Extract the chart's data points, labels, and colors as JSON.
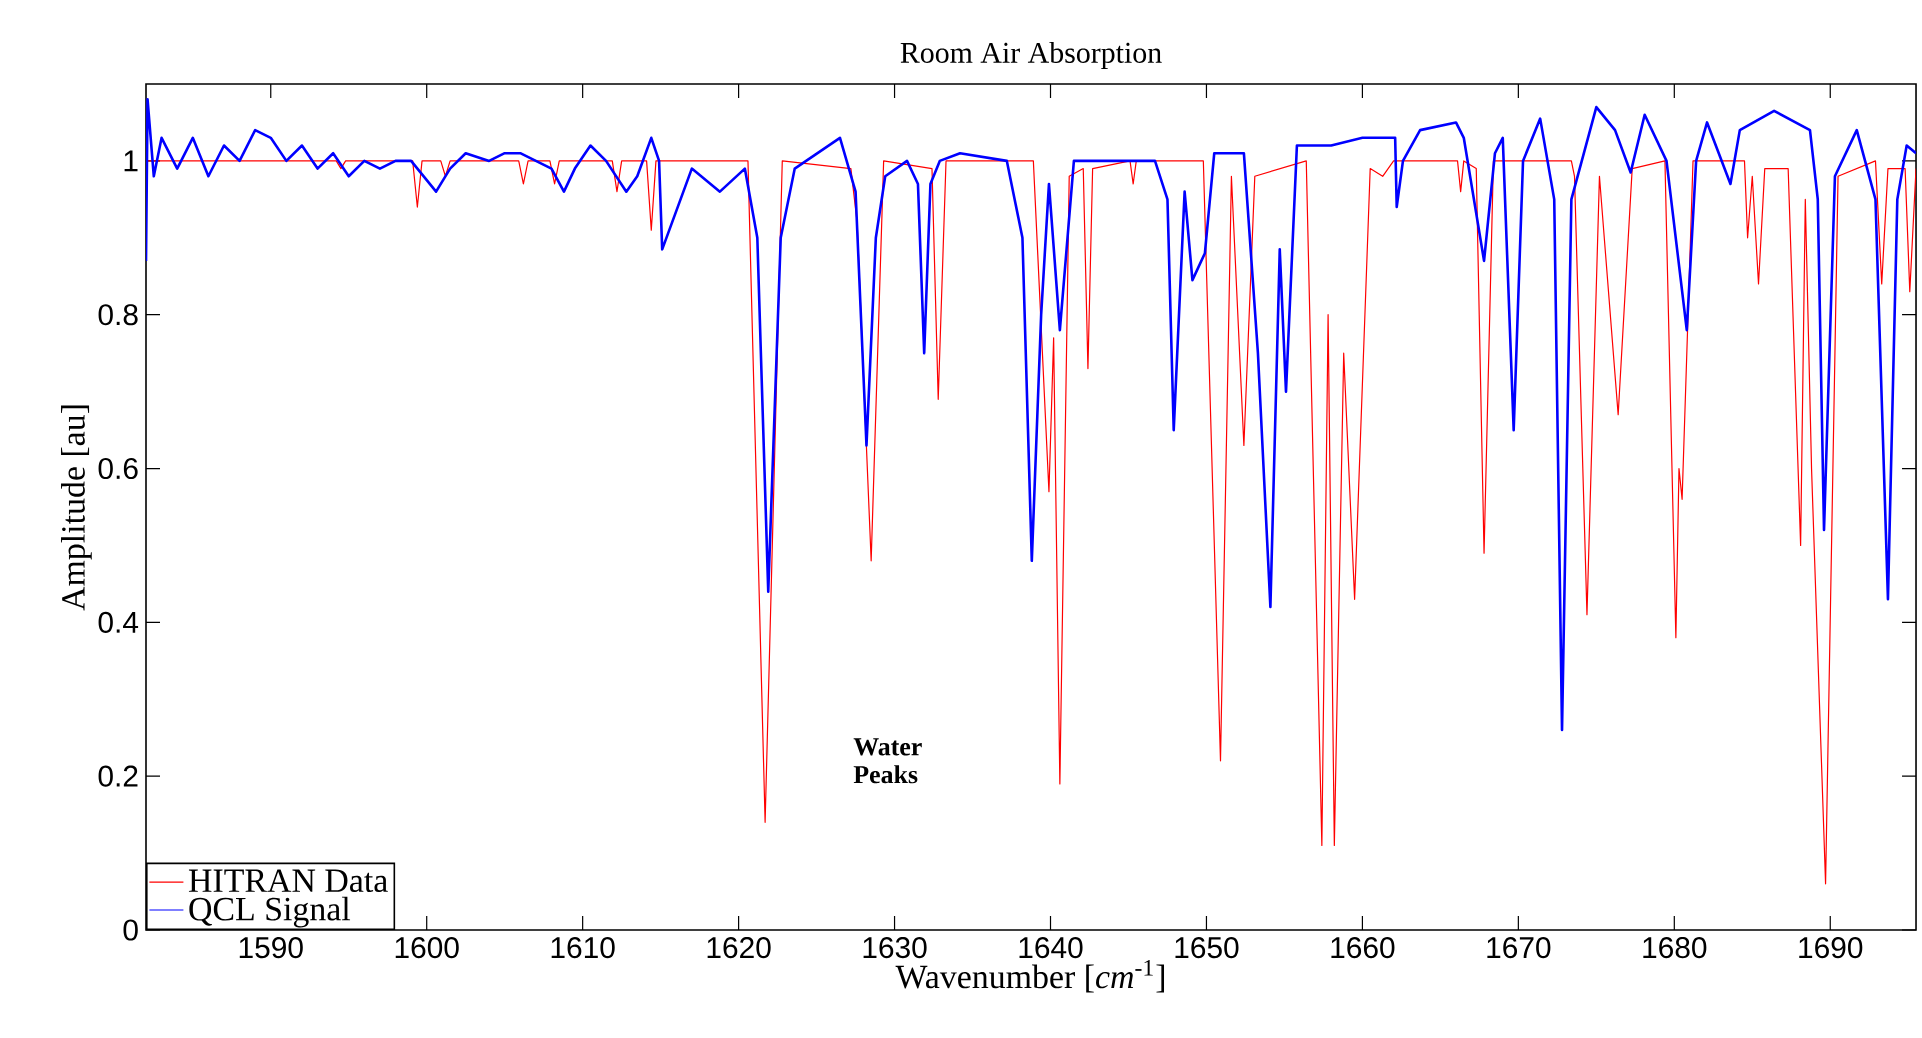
{
  "chart_data": {
    "type": "line",
    "title": "Room Air Absorption",
    "xlabel": "Wavenumber [*cm*$^{-1}$]",
    "ylabel": "Amplitude [au]",
    "xlim": [
      1582,
      1695.5
    ],
    "ylim": [
      0,
      1.1
    ],
    "xticks": [
      1590,
      1600,
      1610,
      1620,
      1630,
      1640,
      1650,
      1660,
      1670,
      1680,
      1690
    ],
    "yticks": [
      0,
      0.2,
      0.4,
      0.6,
      0.8,
      1
    ],
    "legend": "bottom left",
    "grid": false,
    "marker": "none",
    "line_style": "solid",
    "annotations": [
      "Water Peaks"
    ],
    "series": [
      {
        "name": "HITRAN Data",
        "color": "#ff0000",
        "x": [
          1582,
          1594.2,
          1594.5,
          1594.8,
          1599.1,
          1599.4,
          1599.7,
          1600.9,
          1601.2,
          1601.5,
          1605.9,
          1606.2,
          1606.5,
          1607.9,
          1608.2,
          1608.5,
          1611.9,
          1612.2,
          1612.5,
          1614.1,
          1614.4,
          1614.7,
          1620.6,
          1621.7,
          1622.8,
          1627.2,
          1627.6,
          1628.5,
          1629.3,
          1632.4,
          1632.8,
          1633.3,
          1638.9,
          1639.9,
          1640.2,
          1640.6,
          1641.2,
          1642.1,
          1642.4,
          1642.7,
          1645.1,
          1645.3,
          1645.5,
          1649.8,
          1650.9,
          1651.6,
          1652.4,
          1653.1,
          1656.4,
          1657.4,
          1657.8,
          1658.2,
          1658.8,
          1659.5,
          1660.5,
          1661.3,
          1662,
          1666.1,
          1666.3,
          1666.5,
          1667.3,
          1667.8,
          1668.4,
          1673.4,
          1673.6,
          1674.4,
          1675.2,
          1676.4,
          1677.3,
          1679.4,
          1680.1,
          1680.3,
          1680.5,
          1681.2,
          1684.5,
          1684.7,
          1685.0,
          1685.4,
          1685.8,
          1687.3,
          1688.1,
          1688.4,
          1688.8,
          1689.7,
          1690.5,
          1692.9,
          1693.3,
          1693.7,
          1694.8,
          1695.1,
          1695.5
        ],
        "values": [
          1.0,
          1.0,
          0.99,
          1.0,
          1.0,
          0.94,
          1.0,
          1.0,
          0.98,
          1.0,
          1.0,
          0.97,
          1.0,
          1.0,
          0.97,
          1.0,
          1.0,
          0.96,
          1.0,
          1.0,
          0.91,
          1.0,
          1.0,
          0.14,
          1.0,
          0.99,
          0.92,
          0.48,
          1.0,
          0.99,
          0.69,
          1.0,
          1.0,
          0.57,
          0.77,
          0.19,
          0.98,
          0.99,
          0.73,
          0.99,
          1.0,
          0.97,
          1.0,
          1.0,
          0.22,
          0.98,
          0.63,
          0.98,
          1.0,
          0.11,
          0.8,
          0.11,
          0.75,
          0.43,
          0.99,
          0.98,
          1.0,
          1.0,
          0.96,
          1.0,
          0.99,
          0.49,
          1.0,
          1.0,
          0.98,
          0.41,
          0.98,
          0.67,
          0.99,
          1.0,
          0.38,
          0.6,
          0.56,
          1.0,
          1.0,
          0.9,
          0.98,
          0.84,
          0.99,
          0.99,
          0.5,
          0.95,
          0.6,
          0.06,
          0.98,
          1.0,
          0.84,
          0.99,
          0.99,
          0.83,
          0.99
        ]
      },
      {
        "name": "QCL Signal",
        "color": "#0000ff",
        "x": [
          1582,
          1582.1,
          1582.5,
          1583,
          1584,
          1585,
          1586,
          1587,
          1588,
          1589,
          1590,
          1591,
          1592,
          1593,
          1594,
          1595,
          1596,
          1597,
          1598,
          1599,
          1600.6,
          1601.5,
          1602.5,
          1604,
          1605,
          1606,
          1607,
          1608,
          1608.8,
          1609.5,
          1610.5,
          1611.5,
          1612.8,
          1613.5,
          1614.4,
          1614.9,
          1615.1,
          1617,
          1618.8,
          1620.4,
          1621.2,
          1621.9,
          1622.7,
          1623.6,
          1626.5,
          1627.5,
          1628.2,
          1628.8,
          1629.4,
          1630.8,
          1631.5,
          1631.9,
          1632.3,
          1632.9,
          1634.2,
          1637.2,
          1638.2,
          1638.8,
          1639.4,
          1639.9,
          1640.6,
          1641.5,
          1646.7,
          1647.5,
          1647.9,
          1648.6,
          1649.1,
          1649.9,
          1650.5,
          1652.4,
          1653.3,
          1654.1,
          1654.7,
          1655.1,
          1655.8,
          1658,
          1660,
          1662.1,
          1662.2,
          1662.6,
          1663.7,
          1666,
          1666.5,
          1667.8,
          1668.5,
          1669,
          1669.7,
          1670.3,
          1671.4,
          1672.3,
          1672.8,
          1673.4,
          1675,
          1676.2,
          1677.2,
          1678.1,
          1679.5,
          1680.8,
          1681.4,
          1682.1,
          1683.6,
          1684.2,
          1686.4,
          1688.7,
          1689.2,
          1689.6,
          1690.3,
          1691.7,
          1692.9,
          1693.7,
          1694.3,
          1694.9,
          1695.5
        ],
        "values": [
          0.87,
          1.08,
          0.98,
          1.03,
          0.99,
          1.03,
          0.98,
          1.02,
          1.0,
          1.04,
          1.03,
          1.0,
          1.02,
          0.99,
          1.01,
          0.98,
          1.0,
          0.99,
          1.0,
          1.0,
          0.96,
          0.99,
          1.01,
          1.0,
          1.01,
          1.01,
          1.0,
          0.99,
          0.96,
          0.99,
          1.02,
          1.0,
          0.96,
          0.98,
          1.03,
          1.0,
          0.885,
          0.99,
          0.96,
          0.99,
          0.9,
          0.44,
          0.9,
          0.99,
          1.03,
          0.96,
          0.63,
          0.9,
          0.98,
          1.0,
          0.97,
          0.75,
          0.97,
          1.0,
          1.01,
          1.0,
          0.9,
          0.48,
          0.8,
          0.97,
          0.78,
          1.0,
          1.0,
          0.95,
          0.65,
          0.96,
          0.845,
          0.88,
          1.01,
          1.01,
          0.75,
          0.42,
          0.885,
          0.7,
          1.02,
          1.02,
          1.03,
          1.03,
          0.94,
          1.0,
          1.04,
          1.05,
          1.03,
          0.87,
          1.01,
          1.03,
          0.65,
          1.0,
          1.055,
          0.95,
          0.26,
          0.95,
          1.07,
          1.04,
          0.985,
          1.06,
          1.0,
          0.78,
          1.0,
          1.05,
          0.97,
          1.04,
          1.065,
          1.04,
          0.95,
          0.52,
          0.98,
          1.04,
          0.95,
          0.43,
          0.95,
          1.02,
          1.01
        ]
      }
    ]
  }
}
